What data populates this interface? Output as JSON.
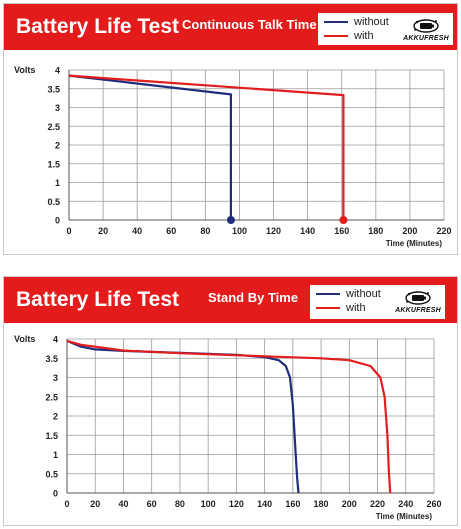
{
  "colors": {
    "banner": "#e31b1b",
    "without": "#1f2d7b",
    "with": "#e21d1d",
    "grid": "#9a9a9a"
  },
  "legend": {
    "without": "without",
    "with": "with"
  },
  "logo": {
    "text": "AKKUFRESH",
    "icon": "battery-logo-icon"
  },
  "chart_data": [
    {
      "type": "line",
      "title": "Battery Life Test",
      "subtitle": "Continuous Talk Time",
      "xlabel": "Time (Minutes)",
      "ylabel": "Volts",
      "xlim": [
        0,
        220
      ],
      "ylim": [
        0,
        4
      ],
      "xticks": [
        0,
        20,
        40,
        60,
        80,
        100,
        120,
        140,
        160,
        180,
        200,
        220
      ],
      "yticks": [
        0,
        0.5,
        1,
        1.5,
        2,
        2.5,
        3,
        3.5,
        4
      ],
      "ytick_labels": [
        "0",
        "0.5",
        "1",
        "1.5",
        "2",
        "2.5",
        "3",
        "3.5",
        "4"
      ],
      "legend_position": "top-right",
      "grid": true,
      "series": [
        {
          "name": "without",
          "color": "#1f2d7b",
          "x": [
            0,
            95,
            95
          ],
          "y": [
            3.85,
            3.35,
            0
          ],
          "end_marker": [
            95,
            0
          ]
        },
        {
          "name": "with",
          "color": "#e21d1d",
          "x": [
            0,
            161,
            161
          ],
          "y": [
            3.85,
            3.33,
            0
          ],
          "end_marker": [
            161,
            0
          ]
        }
      ]
    },
    {
      "type": "line",
      "title": "Battery Life Test",
      "subtitle": "Stand By Time",
      "xlabel": "Time (Minutes)",
      "ylabel": "Volts",
      "xlim": [
        0,
        260
      ],
      "ylim": [
        0,
        4
      ],
      "xticks": [
        0,
        20,
        40,
        60,
        80,
        100,
        120,
        140,
        160,
        180,
        200,
        220,
        240,
        260
      ],
      "yticks": [
        0,
        0.5,
        1,
        1.5,
        2,
        2.5,
        3,
        3.5,
        4
      ],
      "ytick_labels": [
        "0",
        "0.5",
        "1",
        "1.5",
        "2",
        "2.5",
        "3",
        "3.5",
        "4"
      ],
      "legend_position": "top-right",
      "grid": true,
      "series": [
        {
          "name": "without",
          "color": "#1f2d7b",
          "x": [
            0,
            10,
            20,
            40,
            80,
            120,
            140,
            150,
            155,
            158,
            160,
            162,
            163,
            164
          ],
          "y": [
            3.95,
            3.8,
            3.73,
            3.69,
            3.64,
            3.59,
            3.53,
            3.45,
            3.3,
            3.0,
            2.3,
            1.0,
            0.4,
            0
          ]
        },
        {
          "name": "with",
          "color": "#e21d1d",
          "x": [
            0,
            10,
            20,
            40,
            80,
            140,
            180,
            200,
            215,
            222,
            225,
            227,
            228,
            229
          ],
          "y": [
            3.95,
            3.85,
            3.8,
            3.7,
            3.63,
            3.55,
            3.5,
            3.45,
            3.3,
            3.0,
            2.5,
            1.5,
            0.6,
            0
          ]
        }
      ]
    }
  ]
}
